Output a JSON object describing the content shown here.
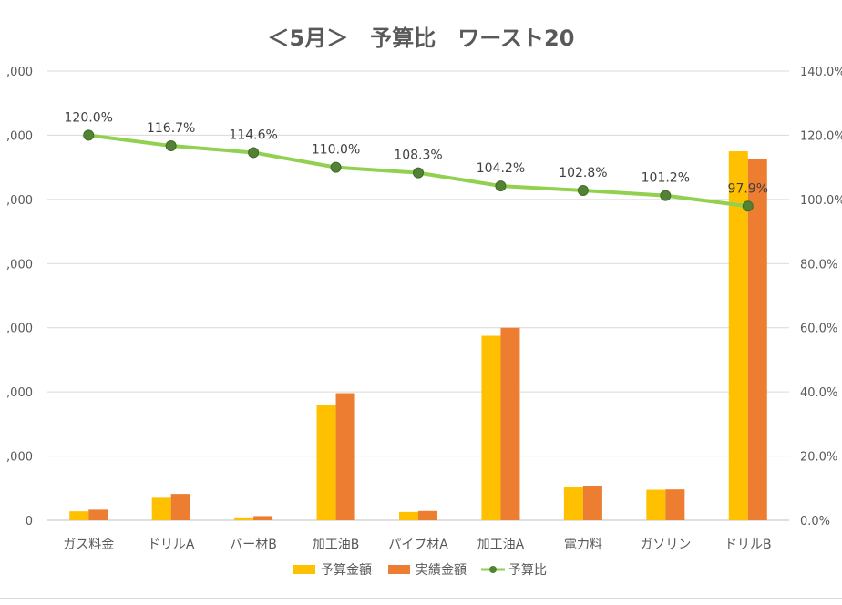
{
  "chart_data": {
    "type": "bar",
    "title": "＜5月＞　予算比　ワースト20",
    "categories": [
      "ガス料金",
      "ドリルA",
      "バー材B",
      "加工油B",
      "パイプ材A",
      "加工油A",
      "電力料",
      "ガソリン",
      "ドリルB"
    ],
    "y_left_ticks": [
      ",000",
      ",000",
      ",000",
      ",000",
      ",000",
      ",000",
      ",000",
      "0"
    ],
    "y_right_ticks": [
      "140.0%",
      "120.0%",
      "100.0%",
      "80.0%",
      "60.0%",
      "40.0%",
      "20.0%",
      "0.0%"
    ],
    "y_left_range": [
      0,
      140
    ],
    "y_right_range": [
      0,
      140
    ],
    "series": [
      {
        "name": "予算金額",
        "type": "bar",
        "axis": "left",
        "color": "#FFC000",
        "values": [
          2.8,
          7.0,
          0.9,
          36.0,
          2.6,
          57.5,
          10.5,
          9.5,
          115.0
        ]
      },
      {
        "name": "実績金額",
        "type": "bar",
        "axis": "left",
        "color": "#ED7D31",
        "values": [
          3.3,
          8.2,
          1.3,
          39.6,
          2.9,
          60.0,
          10.8,
          9.6,
          112.5
        ]
      },
      {
        "name": "予算比",
        "type": "line",
        "axis": "right",
        "color": "#92D050",
        "marker_color": "#548235",
        "values": [
          120.0,
          116.7,
          114.6,
          110.0,
          108.3,
          104.2,
          102.8,
          101.2,
          97.9
        ],
        "labels": [
          "120.0%",
          "116.7%",
          "114.6%",
          "110.0%",
          "108.3%",
          "104.2%",
          "102.8%",
          "101.2%",
          "97.9%"
        ]
      }
    ],
    "grid": true,
    "legend_position": "bottom"
  }
}
